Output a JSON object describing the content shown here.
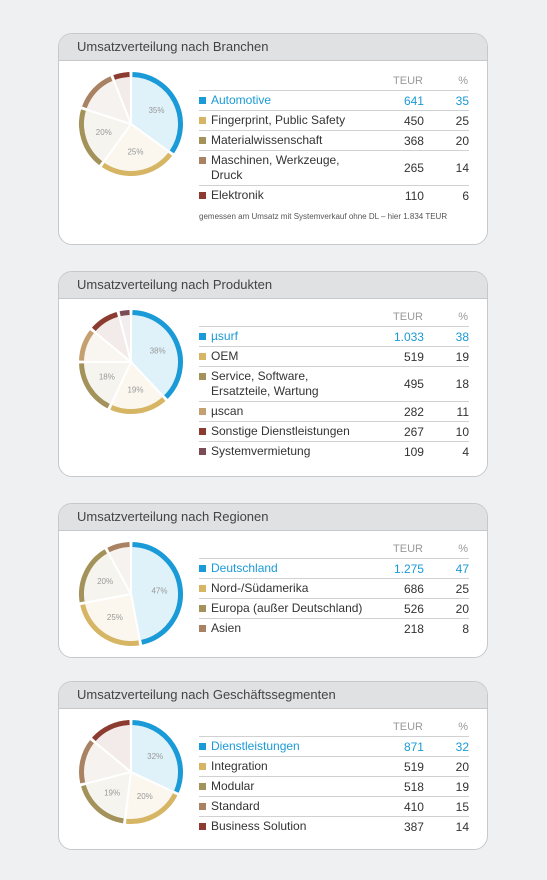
{
  "chart_data": [
    {
      "type": "pie",
      "title": "Umsatzverteilung nach Branchen",
      "columns": [
        "TEUR",
        "%"
      ],
      "categories": [
        "Automotive",
        "Fingerprint, Public Safety",
        "Materialwissenschaft",
        "Maschinen, Werkzeuge, Druck",
        "Elektronik"
      ],
      "values": [
        35,
        25,
        20,
        14,
        6
      ],
      "value_labels": [
        "35%",
        "25%",
        "20%",
        null,
        null
      ],
      "teur": [
        641,
        450,
        368,
        265,
        110
      ],
      "colors": [
        "#1a9ad6",
        "#d6b565",
        "#a3935a",
        "#a98264",
        "#8b3b2f"
      ],
      "note": "gemessen am Umsatz mit Systemverkauf ohne DL – hier 1.834 TEUR"
    },
    {
      "type": "pie",
      "title": "Umsatzverteilung nach Produkten",
      "columns": [
        "TEUR",
        "%"
      ],
      "categories": [
        "µsurf",
        "OEM",
        "Service, Software, Ersatzteile, Wartung",
        "µscan",
        "Sonstige Dienstleistungen",
        "Systemvermietung"
      ],
      "values": [
        38,
        19,
        18,
        11,
        10,
        4
      ],
      "value_labels": [
        "38%",
        "19%",
        "18%",
        null,
        null,
        null
      ],
      "teur": [
        {
          "value": 1033,
          "label": "1.033"
        },
        519,
        495,
        282,
        267,
        109
      ],
      "colors": [
        "#1a9ad6",
        "#d6b565",
        "#a3935a",
        "#c4a070",
        "#8b3b2f",
        "#7b4b56"
      ]
    },
    {
      "type": "pie",
      "title": "Umsatzverteilung nach Regionen",
      "columns": [
        "TEUR",
        "%"
      ],
      "categories": [
        "Deutschland",
        "Nord-/Südamerika",
        "Europa (außer Deutschland)",
        "Asien"
      ],
      "values": [
        47,
        25,
        20,
        8
      ],
      "value_labels": [
        "47%",
        "25%",
        "20%",
        null
      ],
      "teur": [
        {
          "value": 1275,
          "label": "1.275"
        },
        686,
        526,
        218
      ],
      "colors": [
        "#1a9ad6",
        "#d6b565",
        "#a3935a",
        "#a98264"
      ]
    },
    {
      "type": "pie",
      "title": "Umsatzverteilung nach Geschäftssegmenten",
      "columns": [
        "TEUR",
        "%"
      ],
      "categories": [
        "Dienstleistungen",
        "Integration",
        "Modular",
        "Standard",
        "Business Solution"
      ],
      "values": [
        32,
        20,
        19,
        15,
        14
      ],
      "value_labels": [
        "32%",
        "20%",
        "19%",
        null,
        null
      ],
      "teur": [
        871,
        519,
        518,
        410,
        387
      ],
      "colors": [
        "#1a9ad6",
        "#d6b565",
        "#a3935a",
        "#a98264",
        "#8b3b2f"
      ]
    }
  ]
}
